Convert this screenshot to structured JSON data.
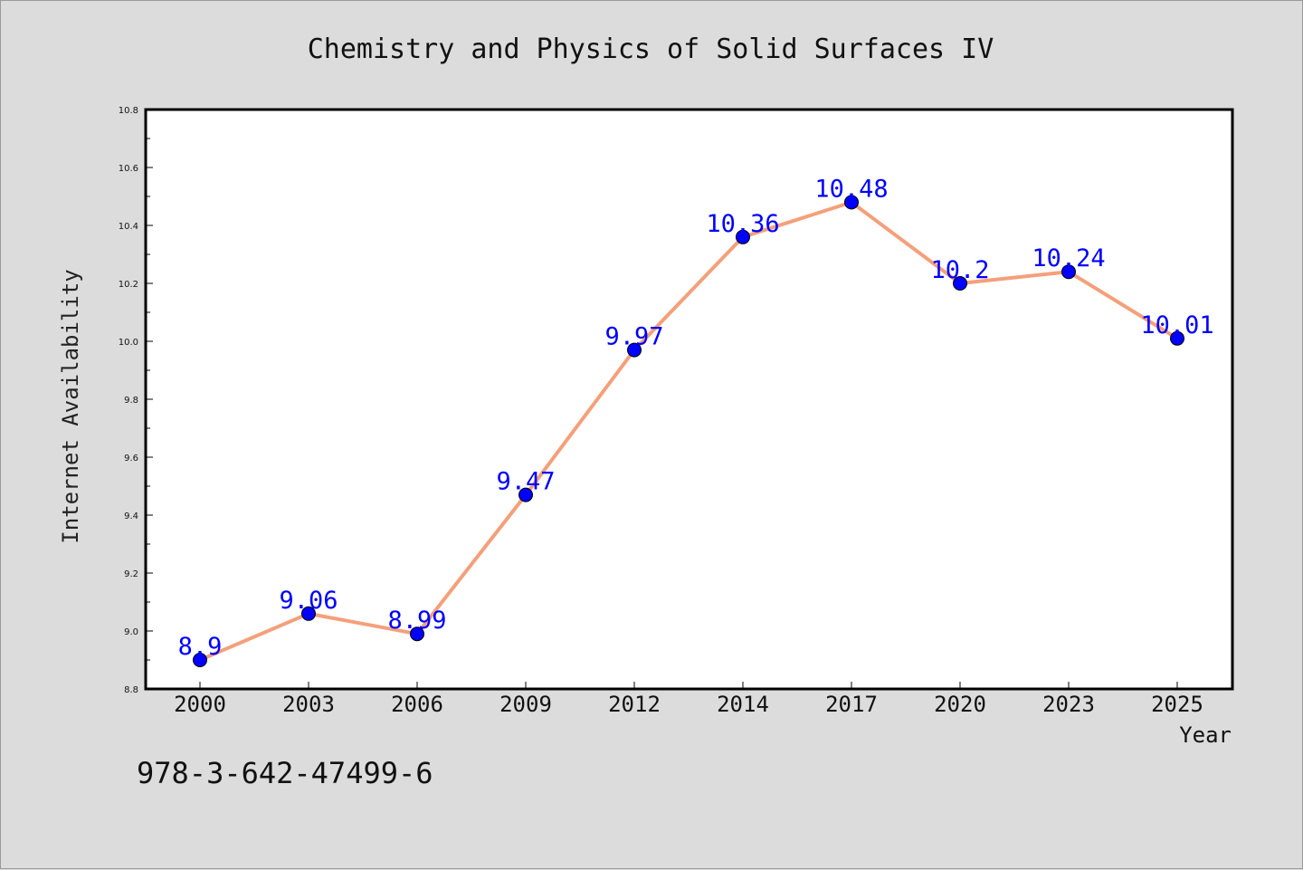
{
  "chart_data": {
    "type": "line",
    "title": "Chemistry and Physics of Solid Surfaces IV",
    "xlabel": "Year",
    "ylabel": "Internet Availability",
    "categories": [
      "2000",
      "2003",
      "2006",
      "2009",
      "2012",
      "2014",
      "2017",
      "2020",
      "2023",
      "2025"
    ],
    "series": [
      {
        "values": [
          8.9,
          9.06,
          8.99,
          9.47,
          9.97,
          10.36,
          10.48,
          10.2,
          10.24,
          10.01
        ],
        "data_labels": [
          "8.9",
          "9.06",
          "8.99",
          "9.47",
          "9.97",
          "10.36",
          "10.48",
          "10.2",
          "10.24",
          "10.01"
        ],
        "line_color": "#f4a07a",
        "marker_color": "#0000ff"
      }
    ],
    "ylim": [
      8.8,
      10.8
    ],
    "yticks": [
      "8.8",
      "9.0",
      "9.2",
      "9.4",
      "9.6",
      "9.8",
      "10.0",
      "10.2",
      "10.4",
      "10.6",
      "10.8"
    ],
    "grid": false,
    "legend": "none",
    "plot_background": "#ffffff",
    "page_background": "#dcdcdc"
  },
  "footer_text": "978-3-642-47499-6"
}
